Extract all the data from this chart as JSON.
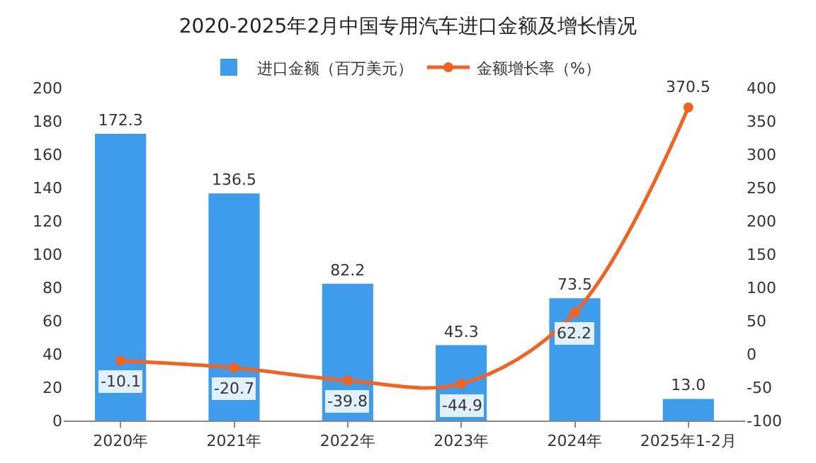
{
  "chart_data": {
    "type": "bar",
    "title": "2020-2025年2月中国专用汽车进口金额及增长情况",
    "categories": [
      "2020年",
      "2021年",
      "2022年",
      "2023年",
      "2024年",
      "2025年1-2月"
    ],
    "series": [
      {
        "name": "进口金额（百万美元）",
        "color": "#3d9cec",
        "values": [
          172.3,
          136.5,
          82.2,
          45.3,
          73.5,
          13.0
        ],
        "value_labels": [
          "172.3",
          "136.5",
          "82.2",
          "45.3",
          "73.5",
          "13.0"
        ]
      },
      {
        "name": "金额增长率（%）",
        "type": "line",
        "axis": "y2",
        "color": "#f4621f",
        "values": [
          -10.1,
          -20.7,
          -39.8,
          -44.9,
          62.2,
          370.5
        ],
        "value_labels": [
          "-10.1",
          "-20.7",
          "-39.8",
          "-44.9",
          "62.2",
          "370.5"
        ]
      }
    ],
    "ylim": [
      0,
      200
    ],
    "yticks": [
      0,
      20,
      40,
      60,
      80,
      100,
      120,
      140,
      160,
      180,
      200
    ],
    "y2lim": [
      -100,
      400
    ],
    "y2ticks": [
      -100,
      -50,
      0,
      50,
      100,
      150,
      200,
      250,
      300,
      350,
      400
    ],
    "marker": "circle",
    "legend": "top",
    "grid": false
  }
}
